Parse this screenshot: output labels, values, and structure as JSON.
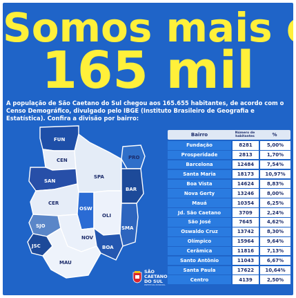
{
  "headline": {
    "line1": "Somos mais de",
    "line2": "165 mil"
  },
  "intro": "A população de São Caetano do Sul chegou aos 165.655 habitantes, de acordo com o Censo Demográfico, divulgado pelo IBGE (Instituto Brasileiro de Geografia e Estatística). Confira a divisão por bairro:",
  "colors": {
    "background": "#1f64c8",
    "headline": "#fff03a",
    "table_label_bg": "#2a7be0",
    "table_value_bg": "#ffffff",
    "table_text": "#1b2b6a"
  },
  "map": {
    "labels": {
      "fun": "FUN",
      "cen": "CEN",
      "pro": "PRO",
      "san": "SAN",
      "spa": "SPA",
      "bar": "BAR",
      "cer": "CER",
      "osw": "OSW",
      "oli": "OLI",
      "sjo": "SJO",
      "sma": "SMA",
      "jsc": "JSC",
      "nov": "NOV",
      "boa": "BOA",
      "mau": "MAU"
    }
  },
  "table": {
    "headers": {
      "bairro": "Bairro",
      "habitantes": "Número de habitantes",
      "percent": "%"
    },
    "rows": [
      {
        "bairro": "Fundação",
        "habitantes": "8281",
        "percent": "5,00%"
      },
      {
        "bairro": "Prosperidade",
        "habitantes": "2813",
        "percent": "1,70%"
      },
      {
        "bairro": "Barcelona",
        "habitantes": "12484",
        "percent": "7,54%"
      },
      {
        "bairro": "Santa Maria",
        "habitantes": "18173",
        "percent": "10,97%"
      },
      {
        "bairro": "Boa Vista",
        "habitantes": "14624",
        "percent": "8,83%"
      },
      {
        "bairro": "Nova Gerty",
        "habitantes": "13246",
        "percent": "8,00%"
      },
      {
        "bairro": "Mauá",
        "habitantes": "10354",
        "percent": "6,25%"
      },
      {
        "bairro": "Jd. São Caetano",
        "habitantes": "3709",
        "percent": "2,24%"
      },
      {
        "bairro": "São José",
        "habitantes": "7645",
        "percent": "4,62%"
      },
      {
        "bairro": "Oswaldo Cruz",
        "habitantes": "13742",
        "percent": "8,30%"
      },
      {
        "bairro": "Olímpico",
        "habitantes": "15964",
        "percent": "9,64%"
      },
      {
        "bairro": "Cerâmica",
        "habitantes": "11816",
        "percent": "7,13%"
      },
      {
        "bairro": "Santo Antônio",
        "habitantes": "11043",
        "percent": "6,67%"
      },
      {
        "bairro": "Santa Paula",
        "habitantes": "17622",
        "percent": "10,64%"
      },
      {
        "bairro": "Centro",
        "habitantes": "4139",
        "percent": "2,50%"
      }
    ]
  },
  "logo": {
    "line1": "SÃO",
    "line2": "CAETANO",
    "line3": "DO SUL",
    "tagline": "PREFEITURA MUNICIPAL"
  }
}
